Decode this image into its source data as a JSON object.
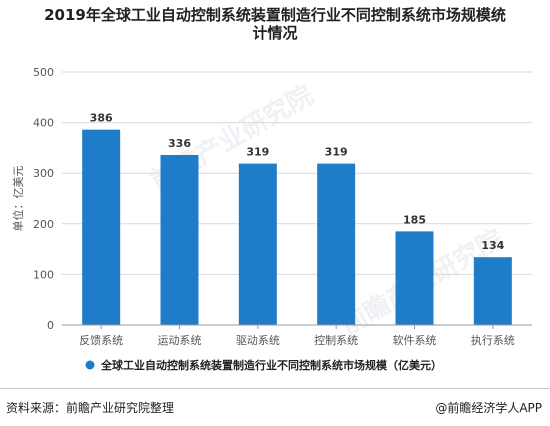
{
  "title_line1": "2019年全球工业自动控制系统装置制造行业不同控制系统市场规模统",
  "title_line2": "计情况",
  "footer": {
    "source": "资料来源：前瞻产业研究院整理",
    "credit": "@前瞻经济学人APP"
  },
  "watermark_text": "前瞻产业研究院",
  "colors": {
    "bar": "#1f7cc8",
    "grid": "#d9d9d9",
    "axis_text": "#555555"
  },
  "chart_data": {
    "type": "bar",
    "categories": [
      "反馈系统",
      "运动系统",
      "驱动系统",
      "控制系统",
      "软件系统",
      "执行系统"
    ],
    "series": [
      {
        "name": "全球工业自动控制系统装置制造行业不同控制系统市场规模（亿美元）",
        "values": [
          386,
          336,
          319,
          319,
          185,
          134
        ]
      }
    ],
    "ylabel": "单位：亿美元",
    "ylim": [
      0,
      500
    ],
    "yticks": [
      0,
      100,
      200,
      300,
      400,
      500
    ],
    "grid": true,
    "legend_position": "bottom"
  }
}
